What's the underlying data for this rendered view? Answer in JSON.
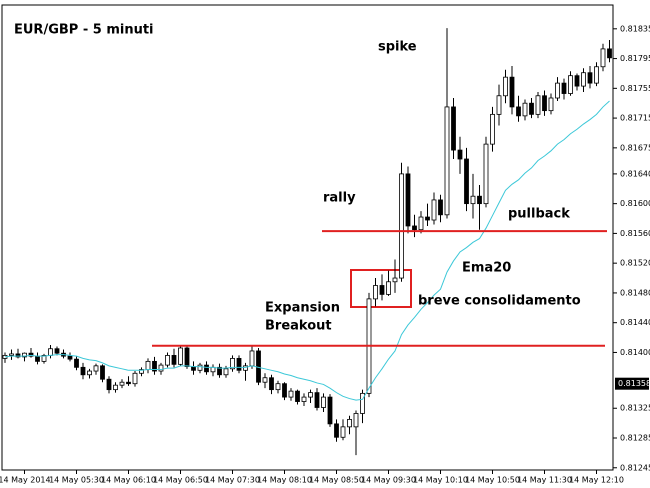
{
  "chart_data": {
    "type": "candlestick",
    "title": "EUR/GBP - 5 minuti",
    "categories": [
      null,
      null,
      null,
      "14 May 2014",
      null,
      null,
      null,
      null,
      null,
      null,
      null,
      "14 May 05:30",
      null,
      null,
      null,
      null,
      null,
      null,
      null,
      "14 May 06:10",
      null,
      null,
      null,
      null,
      null,
      null,
      null,
      "14 May 06:50",
      null,
      null,
      null,
      null,
      null,
      null,
      null,
      "14 May 07:30",
      null,
      null,
      null,
      null,
      null,
      null,
      null,
      "14 May 08:10",
      null,
      null,
      null,
      null,
      null,
      null,
      null,
      "14 May 08:50",
      null,
      null,
      null,
      null,
      null,
      null,
      null,
      "14 May 09:30",
      null,
      null,
      null,
      null,
      null,
      null,
      null,
      "14 May 10:10",
      null,
      null,
      null,
      null,
      null,
      null,
      null,
      "14 May 10:50",
      null,
      null,
      null,
      null,
      null,
      null,
      null,
      "14 May 11:30",
      null,
      null,
      null,
      null,
      null,
      null,
      null,
      "14 May 12:10",
      null,
      null
    ],
    "open": [
      0.81392,
      0.81396,
      0.81398,
      0.81394,
      0.81399,
      0.81395,
      0.81388,
      0.81396,
      0.81405,
      0.81399,
      0.81395,
      0.81391,
      0.8138,
      0.8137,
      0.81375,
      0.81382,
      0.81364,
      0.8135,
      0.81356,
      0.8136,
      0.81358,
      0.81372,
      0.81377,
      0.81388,
      0.81375,
      0.81383,
      0.81396,
      0.81384,
      0.81406,
      0.81381,
      0.81376,
      0.81383,
      0.81374,
      0.8138,
      0.8137,
      0.81378,
      0.81392,
      0.81376,
      0.81382,
      0.81402,
      0.8136,
      0.81366,
      0.8135,
      0.81358,
      0.8134,
      0.81348,
      0.81334,
      0.8134,
      0.81346,
      0.81326,
      0.8134,
      0.81304,
      0.81286,
      0.813,
      0.813,
      0.81318,
      0.81345,
      0.81472,
      0.8149,
      0.81478,
      0.81495,
      0.815,
      0.8164,
      0.8157,
      0.81565,
      0.81582,
      0.81578,
      0.81605,
      0.81585,
      0.8173,
      0.81672,
      0.8166,
      0.816,
      0.8161,
      0.816,
      0.8168,
      0.8172,
      0.81745,
      0.8177,
      0.8173,
      0.81718,
      0.81735,
      0.8172,
      0.81745,
      0.81725,
      0.81742,
      0.81762,
      0.81748,
      0.81772,
      0.81758,
      0.81776,
      0.81762,
      0.81784,
      0.81808
    ],
    "high": [
      0.814,
      0.81404,
      0.81405,
      0.814,
      0.81406,
      0.814,
      0.81398,
      0.8141,
      0.81408,
      0.81404,
      0.814,
      0.81395,
      0.81386,
      0.81378,
      0.81385,
      0.81384,
      0.81368,
      0.8136,
      0.81364,
      0.81368,
      0.81375,
      0.8138,
      0.81392,
      0.81394,
      0.81386,
      0.814,
      0.81405,
      0.8141,
      0.8141,
      0.81388,
      0.81386,
      0.81388,
      0.81384,
      0.81385,
      0.81382,
      0.81396,
      0.81396,
      0.81386,
      0.8141,
      0.81406,
      0.81372,
      0.8137,
      0.81362,
      0.8136,
      0.81352,
      0.8135,
      0.81345,
      0.8135,
      0.81352,
      0.81345,
      0.81344,
      0.8131,
      0.8131,
      0.81315,
      0.81322,
      0.8135,
      0.8148,
      0.815,
      0.81505,
      0.8151,
      0.81525,
      0.81655,
      0.8165,
      0.81585,
      0.8159,
      0.816,
      0.81615,
      0.81612,
      0.81836,
      0.81742,
      0.8169,
      0.81675,
      0.8164,
      0.81625,
      0.8169,
      0.8173,
      0.8176,
      0.8178,
      0.81785,
      0.81745,
      0.8174,
      0.81742,
      0.8175,
      0.81752,
      0.81748,
      0.8177,
      0.81768,
      0.81778,
      0.81775,
      0.81782,
      0.81785,
      0.8179,
      0.81815,
      0.8182
    ],
    "low": [
      0.81386,
      0.8139,
      0.81392,
      0.81388,
      0.81393,
      0.81384,
      0.81385,
      0.81392,
      0.81396,
      0.81392,
      0.81388,
      0.81376,
      0.81364,
      0.81365,
      0.8137,
      0.8136,
      0.81345,
      0.81346,
      0.81352,
      0.81355,
      0.81354,
      0.81368,
      0.81372,
      0.8137,
      0.8137,
      0.8138,
      0.8138,
      0.81382,
      0.81378,
      0.8137,
      0.81372,
      0.8137,
      0.81368,
      0.81366,
      0.81366,
      0.81374,
      0.81372,
      0.81362,
      0.81378,
      0.81356,
      0.81352,
      0.81344,
      0.81345,
      0.81336,
      0.81335,
      0.8133,
      0.81328,
      0.81332,
      0.81322,
      0.8132,
      0.813,
      0.8128,
      0.81282,
      0.8129,
      0.81262,
      0.81305,
      0.8134,
      0.81462,
      0.8147,
      0.81476,
      0.8148,
      0.81495,
      0.8156,
      0.81555,
      0.8156,
      0.8157,
      0.81572,
      0.81575,
      0.8158,
      0.8166,
      0.8164,
      0.8159,
      0.8158,
      0.81565,
      0.81595,
      0.8167,
      0.81705,
      0.81735,
      0.8172,
      0.8171,
      0.81712,
      0.81715,
      0.81715,
      0.81718,
      0.8172,
      0.81738,
      0.8174,
      0.81745,
      0.81752,
      0.8175,
      0.81755,
      0.81758,
      0.81778,
      0.8179
    ],
    "close": [
      0.81396,
      0.81398,
      0.81394,
      0.81399,
      0.81395,
      0.81388,
      0.81396,
      0.81405,
      0.81399,
      0.81395,
      0.81391,
      0.8138,
      0.8137,
      0.81375,
      0.81382,
      0.81364,
      0.8135,
      0.81356,
      0.8136,
      0.81358,
      0.81372,
      0.81377,
      0.81388,
      0.81375,
      0.81383,
      0.81396,
      0.81384,
      0.81406,
      0.81381,
      0.81376,
      0.81383,
      0.81374,
      0.8138,
      0.8137,
      0.81378,
      0.81392,
      0.81376,
      0.81382,
      0.81402,
      0.8136,
      0.81366,
      0.8135,
      0.81358,
      0.8134,
      0.81348,
      0.81334,
      0.8134,
      0.81346,
      0.81326,
      0.8134,
      0.81304,
      0.81286,
      0.813,
      0.8131,
      0.81318,
      0.81345,
      0.81472,
      0.8149,
      0.81478,
      0.81495,
      0.815,
      0.8164,
      0.8157,
      0.81565,
      0.81582,
      0.81578,
      0.81605,
      0.81585,
      0.8173,
      0.81672,
      0.8166,
      0.816,
      0.8161,
      0.816,
      0.8168,
      0.8172,
      0.81745,
      0.8177,
      0.8173,
      0.81718,
      0.81735,
      0.8172,
      0.81745,
      0.81725,
      0.81742,
      0.81762,
      0.81748,
      0.81772,
      0.81758,
      0.81776,
      0.81762,
      0.81784,
      0.81808,
      0.81796
    ],
    "ema": [
      0.81394,
      0.81395,
      0.81395,
      0.81395,
      0.81396,
      0.81395,
      0.81395,
      0.81396,
      0.81397,
      0.81397,
      0.81396,
      0.81395,
      0.81392,
      0.8139,
      0.81389,
      0.81386,
      0.81382,
      0.8138,
      0.81378,
      0.81376,
      0.81376,
      0.81376,
      0.81377,
      0.81377,
      0.81377,
      0.81379,
      0.81379,
      0.81382,
      0.81382,
      0.81381,
      0.81381,
      0.8138,
      0.8138,
      0.81379,
      0.81379,
      0.8138,
      0.8138,
      0.8138,
      0.81382,
      0.8138,
      0.81378,
      0.81376,
      0.81374,
      0.81371,
      0.81369,
      0.81366,
      0.81364,
      0.81362,
      0.81359,
      0.81357,
      0.81352,
      0.81346,
      0.81341,
      0.81338,
      0.81336,
      0.81337,
      0.81352,
      0.81366,
      0.81378,
      0.81391,
      0.81402,
      0.81424,
      0.81437,
      0.81447,
      0.81458,
      0.81467,
      0.81477,
      0.81485,
      0.81508,
      0.81523,
      0.81535,
      0.81541,
      0.81548,
      0.81553,
      0.81567,
      0.81584,
      0.81601,
      0.81618,
      0.81626,
      0.81632,
      0.81641,
      0.81648,
      0.81658,
      0.81664,
      0.81671,
      0.8168,
      0.81686,
      0.81694,
      0.817,
      0.81707,
      0.81713,
      0.8172,
      0.8173,
      0.81738
    ],
    "ema_color": "#3cc8d8",
    "up_color": "#ffffff",
    "down_color": "#000000",
    "level_color": "#e02020",
    "levels": [
      0.81563,
      0.81409
    ],
    "ylim": [
      0.81242,
      0.81867
    ],
    "yticks": [
      {
        "value": 0.81835,
        "label": "0.81835"
      },
      {
        "value": 0.81795,
        "label": "0.81795"
      },
      {
        "value": 0.81755,
        "label": "0.81755"
      },
      {
        "value": 0.81715,
        "label": "0.81715"
      },
      {
        "value": 0.81675,
        "label": "0.81675"
      },
      {
        "value": 0.8164,
        "label": "0.81640"
      },
      {
        "value": 0.816,
        "label": "0.81600"
      },
      {
        "value": 0.8156,
        "label": "0.81560"
      },
      {
        "value": 0.8152,
        "label": "0.81520"
      },
      {
        "value": 0.8148,
        "label": "0.81480"
      },
      {
        "value": 0.8144,
        "label": "0.81440"
      },
      {
        "value": 0.814,
        "label": "0.81400"
      },
      {
        "value": 0.81325,
        "label": "0.81325"
      },
      {
        "value": 0.81285,
        "label": "0.81285"
      },
      {
        "value": 0.81245,
        "label": "0.81245"
      }
    ],
    "current_price": {
      "value": 0.81358,
      "label": "0.81358"
    },
    "annotations": [
      "spike",
      "rally",
      "pullback",
      "Ema20",
      "breve consolidamento",
      "Expansion",
      "Breakout"
    ]
  }
}
